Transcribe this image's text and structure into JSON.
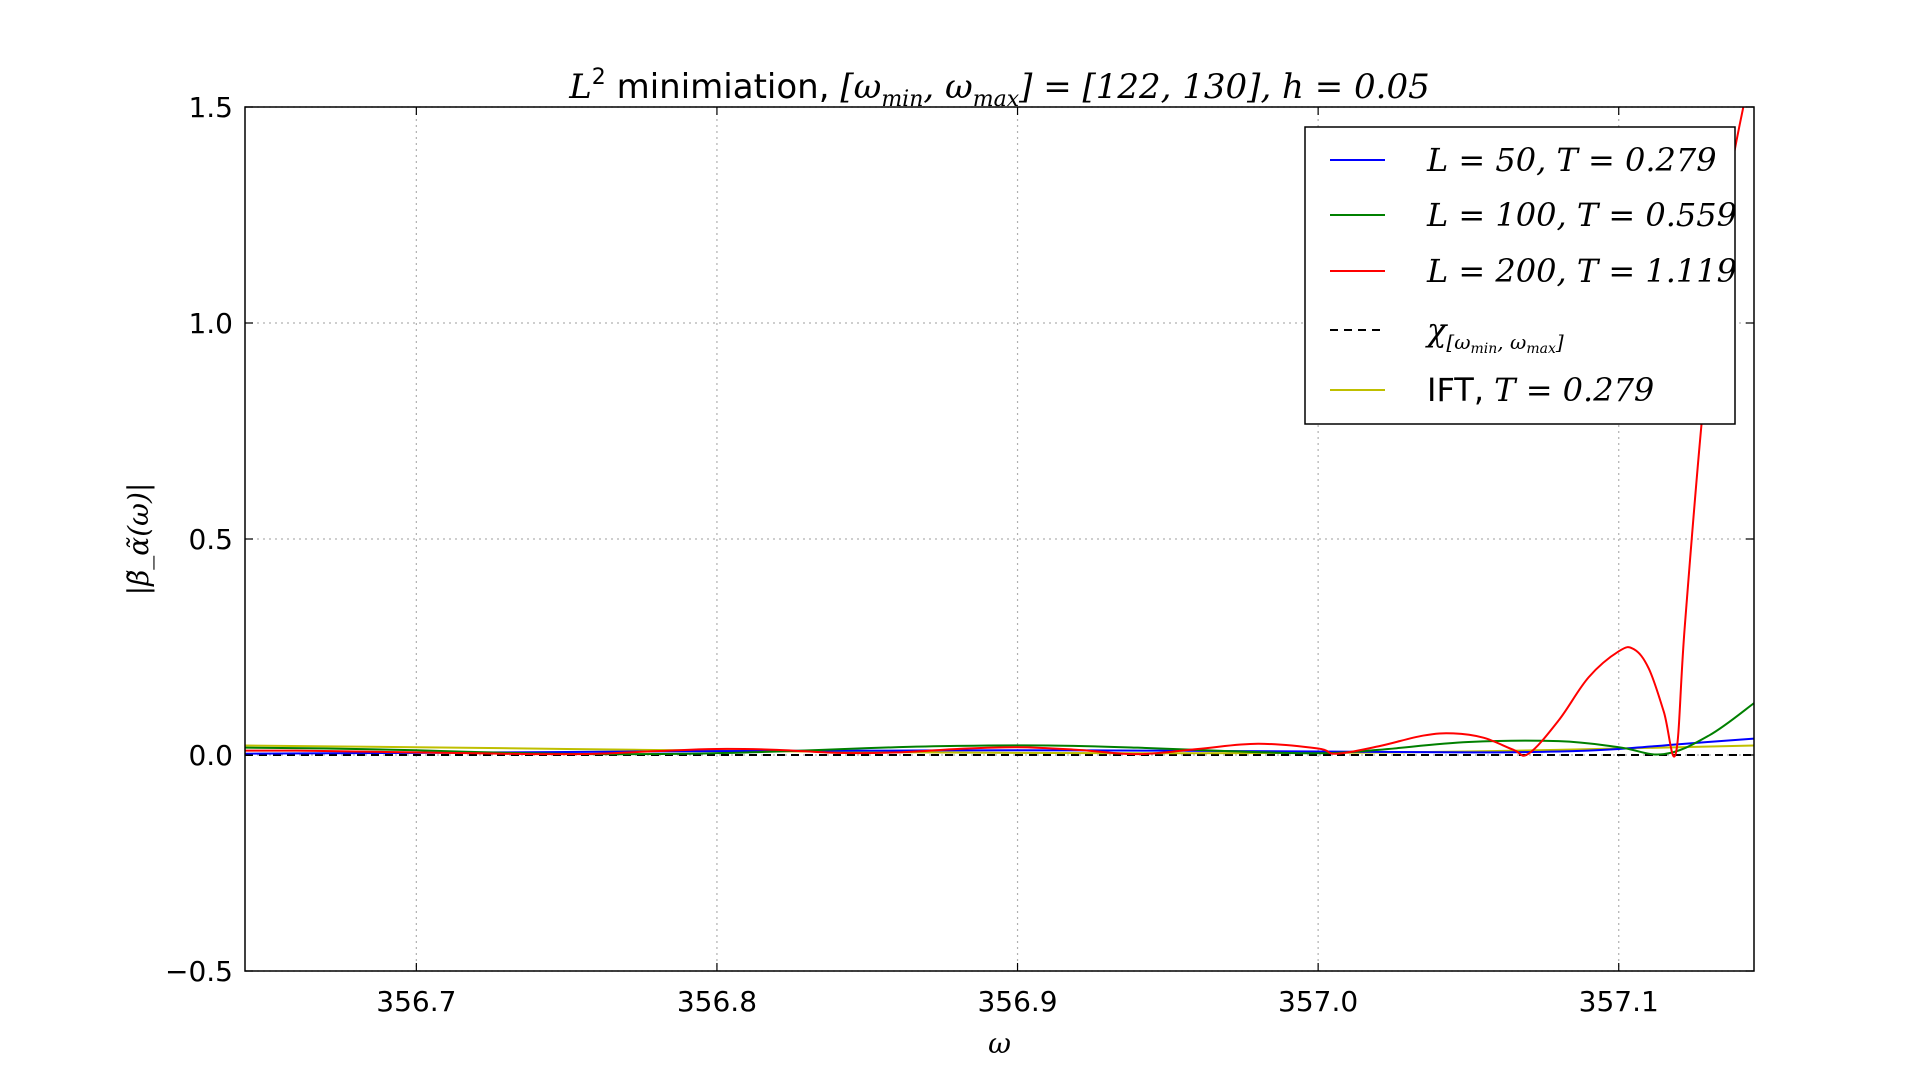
{
  "chart_data": {
    "type": "line",
    "title": "L² minimiation, [ω_min, ω_max] = [122, 130], h = 0.05",
    "title_parts": {
      "var": "L",
      "sup": "2",
      "text": " minimiation, ",
      "interval": "[ω",
      "interval_min_sub": "min",
      "interval_mid": ", ω",
      "interval_max_sub": "max",
      "interval_end": "] = [122, 130]",
      "h": ", h = 0.05"
    },
    "xlabel": "ω",
    "ylabel": "|β̃_α̃(ω)|",
    "xlim": [
      356.643,
      357.145
    ],
    "ylim": [
      -0.5,
      1.5
    ],
    "xticks": [
      356.7,
      356.8,
      356.9,
      357.0,
      357.1
    ],
    "xtick_labels": [
      "356.7",
      "356.8",
      "356.9",
      "357.0",
      "357.1"
    ],
    "yticks": [
      -0.5,
      0.0,
      0.5,
      1.0,
      1.5
    ],
    "ytick_labels": [
      "−0.5",
      "0.0",
      "0.5",
      "1.0",
      "1.5"
    ],
    "grid": true,
    "legend_position": "top-right",
    "series": [
      {
        "name": "L = 50, T = 0.279",
        "color": "#0000ff",
        "style": "solid",
        "x": [
          356.643,
          356.7,
          356.75,
          356.8,
          356.85,
          356.9,
          356.95,
          357.0,
          357.05,
          357.08,
          357.1,
          357.12,
          357.145
        ],
        "y": [
          0.003,
          0.005,
          0.007,
          0.009,
          0.01,
          0.011,
          0.01,
          0.008,
          0.006,
          0.008,
          0.014,
          0.025,
          0.038
        ]
      },
      {
        "name": "L = 100, T = 0.559",
        "color": "#008000",
        "style": "solid",
        "x": [
          356.643,
          356.67,
          356.7,
          356.73,
          356.76,
          356.79,
          356.82,
          356.85,
          356.88,
          356.91,
          356.94,
          356.97,
          357.0,
          357.02,
          357.05,
          357.08,
          357.1,
          357.115,
          357.13,
          357.145
        ],
        "y": [
          0.017,
          0.015,
          0.011,
          0.005,
          0.002,
          0.003,
          0.008,
          0.016,
          0.021,
          0.022,
          0.017,
          0.009,
          0.004,
          0.012,
          0.03,
          0.032,
          0.018,
          0.002,
          0.045,
          0.12
        ]
      },
      {
        "name": "L = 200, T = 1.119",
        "color": "#ff0000",
        "style": "solid",
        "x": [
          356.643,
          356.66,
          356.68,
          356.7,
          356.72,
          356.74,
          356.76,
          356.78,
          356.8,
          356.82,
          356.84,
          356.86,
          356.88,
          356.9,
          356.92,
          356.94,
          356.96,
          356.98,
          357.0,
          357.006,
          357.02,
          357.035,
          357.045,
          357.055,
          357.065,
          357.07,
          357.08,
          357.09,
          357.1,
          357.105,
          357.11,
          357.115,
          357.119,
          357.122,
          357.128,
          357.135,
          357.142
        ],
        "y": [
          0.01,
          0.01,
          0.008,
          0.006,
          0.004,
          0.002,
          0.003,
          0.009,
          0.014,
          0.012,
          0.005,
          0.006,
          0.014,
          0.018,
          0.012,
          0.002,
          0.014,
          0.026,
          0.015,
          0.003,
          0.02,
          0.045,
          0.05,
          0.04,
          0.012,
          0.003,
          0.08,
          0.18,
          0.24,
          0.245,
          0.2,
          0.1,
          0.004,
          0.3,
          0.8,
          1.25,
          1.52
        ]
      },
      {
        "name": "χ[ω_min, ω_max]",
        "legend_parts": {
          "var": "χ",
          "sub": "[ω",
          "sub_min": "min",
          "sub_mid": ", ω",
          "sub_max": "max",
          "sub_end": "]"
        },
        "color": "#000000",
        "style": "dashed",
        "x": [
          356.643,
          357.145
        ],
        "y": [
          0.0,
          0.0
        ]
      },
      {
        "name": "IFT, T = 0.279",
        "color": "#bfbf00",
        "style": "solid",
        "x": [
          356.643,
          356.7,
          356.75,
          356.8,
          356.85,
          356.9,
          356.95,
          357.0,
          357.05,
          357.1,
          357.145
        ],
        "y": [
          0.022,
          0.018,
          0.014,
          0.01,
          0.007,
          0.005,
          0.004,
          0.005,
          0.008,
          0.015,
          0.022
        ]
      }
    ],
    "legend_entries": [
      {
        "prefix": "",
        "var1": "L",
        "eq1": " = 50, ",
        "var2": "T",
        "eq2": " = 0.279"
      },
      {
        "prefix": "",
        "var1": "L",
        "eq1": " = 100, ",
        "var2": "T",
        "eq2": " = 0.559"
      },
      {
        "prefix": "",
        "var1": "L",
        "eq1": " = 200, ",
        "var2": "T",
        "eq2": " = 1.119"
      },
      {
        "prefix": "",
        "var1": "χ",
        "eq1": "[ω_min, ω_max]",
        "var2": "",
        "eq2": ""
      },
      {
        "prefix": "IFT, ",
        "var1": "",
        "eq1": "",
        "var2": "T",
        "eq2": " = 0.279"
      }
    ]
  }
}
